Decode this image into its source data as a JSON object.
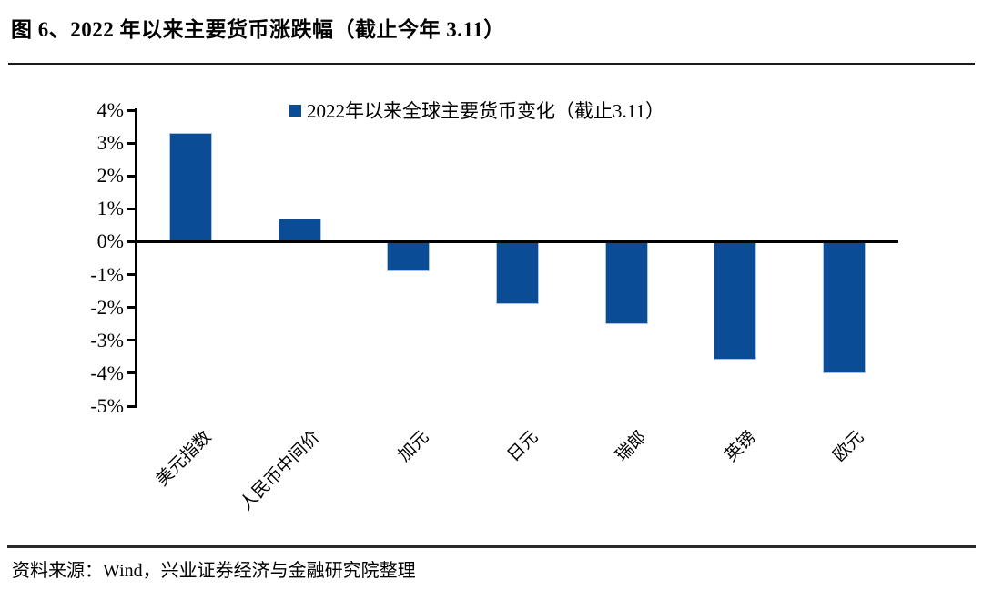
{
  "figure": {
    "title": "图 6、2022 年以来主要货币涨跌幅（截止今年 3.11）",
    "source_note": "资料来源：Wind，兴业证券经济与金融研究院整理"
  },
  "chart_data": {
    "type": "bar",
    "title": "2022 年以来主要货币涨跌幅（截止今年 3.11）",
    "legend": [
      "2022年以来全球主要货币变化（截止3.11）"
    ],
    "legend_position": "top",
    "categories": [
      "美元指数",
      "人民币中间价",
      "加元",
      "日元",
      "瑞郎",
      "英镑",
      "欧元"
    ],
    "values": [
      3.3,
      0.7,
      -0.9,
      -1.9,
      -2.5,
      -3.6,
      -4.0
    ],
    "xlabel": "",
    "ylabel": "",
    "ylim": [
      -5,
      4
    ],
    "yticks": [
      {
        "value": 4,
        "label": "4%"
      },
      {
        "value": 3,
        "label": "3%"
      },
      {
        "value": 2,
        "label": "2%"
      },
      {
        "value": 1,
        "label": "1%"
      },
      {
        "value": 0,
        "label": "0%"
      },
      {
        "value": -1,
        "label": "-1%"
      },
      {
        "value": -2,
        "label": "-2%"
      },
      {
        "value": -3,
        "label": "-3%"
      },
      {
        "value": -4,
        "label": "-4%"
      },
      {
        "value": -5,
        "label": "-5%"
      }
    ],
    "grid": false,
    "bar_color": "#0a4d96",
    "bar_border_color": "#a9c3e2",
    "axis_color": "#000000"
  }
}
